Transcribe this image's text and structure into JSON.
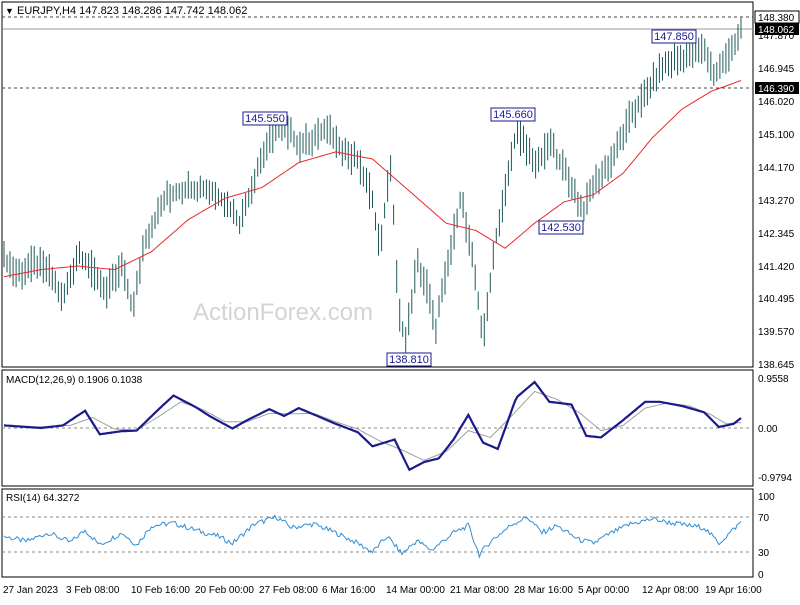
{
  "header": {
    "menu_symbol": "▼",
    "title": "EURJPY,H4  147.823 148.286 147.742 148.062"
  },
  "watermark": "ActionForex.com",
  "colors": {
    "background": "#ffffff",
    "axis": "#000000",
    "bars": "#1e5a5a",
    "ma_line": "#e8282d",
    "macd_line": "#1a1a8c",
    "signal_line": "#a0a0a0",
    "rsi_line": "#2f8fd6",
    "label_border": "#1a1a8c",
    "label_text": "#1a1a8c",
    "grid_dash": "#888888",
    "watermark": "#d4d4d4"
  },
  "price_panel": {
    "y_ticks": [
      "147.870",
      "146.945",
      "146.020",
      "145.100",
      "144.170",
      "143.270",
      "142.345",
      "141.420",
      "140.495",
      "139.570",
      "138.645"
    ],
    "current_price_badge": "148.062",
    "high_line_badge": "148.380",
    "support_line_badge": "146.390",
    "annotations": [
      {
        "text": "145.550"
      },
      {
        "text": "138.810"
      },
      {
        "text": "145.660"
      },
      {
        "text": "142.530"
      },
      {
        "text": "147.850"
      }
    ]
  },
  "macd_panel": {
    "title": "MACD(12,26,9) 0.1906 0.1038",
    "y_ticks": [
      "0.9558",
      "0.00",
      "-0.9794"
    ]
  },
  "rsi_panel": {
    "title": "RSI(14) 64.3272",
    "y_ticks": [
      "100",
      "70",
      "30",
      "0"
    ]
  },
  "x_axis_labels": [
    "27 Jan 2023",
    "3 Feb 08:00",
    "10 Feb 16:00",
    "20 Feb 00:00",
    "27 Feb 08:00",
    "6 Mar 16:00",
    "14 Mar 00:00",
    "21 Mar 08:00",
    "28 Mar 16:00",
    "5 Apr 00:00",
    "12 Apr 08:00",
    "19 Apr 16:00"
  ],
  "chart_data": [
    {
      "type": "line",
      "title": "EURJPY,H4",
      "price_range": [
        138.5,
        148.5
      ],
      "levels": {
        "high": 148.38,
        "support": 146.39,
        "current": 148.062
      },
      "annotations": [
        {
          "t": 0.36,
          "value": 145.55,
          "text": "145.550"
        },
        {
          "t": 0.545,
          "value": 138.81,
          "text": "138.810"
        },
        {
          "t": 0.685,
          "value": 145.66,
          "text": "145.660"
        },
        {
          "t": 0.79,
          "value": 142.53,
          "text": "142.530"
        },
        {
          "t": 0.935,
          "value": 147.85,
          "text": "147.850"
        }
      ],
      "series": [
        {
          "name": "EURJPY",
          "keypoints": [
            [
              0.0,
              141.6
            ],
            [
              0.02,
              141.2
            ],
            [
              0.04,
              141.5
            ],
            [
              0.06,
              141.3
            ],
            [
              0.08,
              140.4
            ],
            [
              0.1,
              141.8
            ],
            [
              0.12,
              141.3
            ],
            [
              0.14,
              140.7
            ],
            [
              0.16,
              141.4
            ],
            [
              0.175,
              140.1
            ],
            [
              0.19,
              142.1
            ],
            [
              0.22,
              143.3
            ],
            [
              0.25,
              143.6
            ],
            [
              0.28,
              143.5
            ],
            [
              0.3,
              143.2
            ],
            [
              0.32,
              142.6
            ],
            [
              0.34,
              143.9
            ],
            [
              0.36,
              145.0
            ],
            [
              0.38,
              145.3
            ],
            [
              0.4,
              144.8
            ],
            [
              0.42,
              145.0
            ],
            [
              0.44,
              145.2
            ],
            [
              0.46,
              144.7
            ],
            [
              0.48,
              144.3
            ],
            [
              0.5,
              143.3
            ],
            [
              0.51,
              141.9
            ],
            [
              0.525,
              144.3
            ],
            [
              0.535,
              140.2
            ],
            [
              0.545,
              139.3
            ],
            [
              0.56,
              141.5
            ],
            [
              0.575,
              140.8
            ],
            [
              0.585,
              139.6
            ],
            [
              0.6,
              141.2
            ],
            [
              0.62,
              143.4
            ],
            [
              0.64,
              141.0
            ],
            [
              0.65,
              139.3
            ],
            [
              0.665,
              141.9
            ],
            [
              0.68,
              143.5
            ],
            [
              0.695,
              145.2
            ],
            [
              0.71,
              144.7
            ],
            [
              0.725,
              144.2
            ],
            [
              0.74,
              144.9
            ],
            [
              0.755,
              144.3
            ],
            [
              0.77,
              143.7
            ],
            [
              0.785,
              142.9
            ],
            [
              0.8,
              143.7
            ],
            [
              0.815,
              144.1
            ],
            [
              0.83,
              144.6
            ],
            [
              0.85,
              145.6
            ],
            [
              0.87,
              146.2
            ],
            [
              0.89,
              146.9
            ],
            [
              0.91,
              147.2
            ],
            [
              0.93,
              147.3
            ],
            [
              0.95,
              147.5
            ],
            [
              0.965,
              146.7
            ],
            [
              0.975,
              147.1
            ],
            [
              0.985,
              147.4
            ],
            [
              1.0,
              148.06
            ]
          ]
        },
        {
          "name": "MA",
          "keypoints": [
            [
              0.0,
              141.1
            ],
            [
              0.05,
              141.3
            ],
            [
              0.1,
              141.4
            ],
            [
              0.15,
              141.3
            ],
            [
              0.2,
              141.8
            ],
            [
              0.25,
              142.7
            ],
            [
              0.3,
              143.3
            ],
            [
              0.35,
              143.6
            ],
            [
              0.4,
              144.3
            ],
            [
              0.45,
              144.6
            ],
            [
              0.5,
              144.4
            ],
            [
              0.55,
              143.5
            ],
            [
              0.6,
              142.6
            ],
            [
              0.64,
              142.4
            ],
            [
              0.68,
              141.9
            ],
            [
              0.72,
              142.6
            ],
            [
              0.76,
              143.2
            ],
            [
              0.8,
              143.4
            ],
            [
              0.84,
              144.0
            ],
            [
              0.88,
              145.0
            ],
            [
              0.92,
              145.8
            ],
            [
              0.96,
              146.3
            ],
            [
              1.0,
              146.6
            ]
          ]
        }
      ]
    },
    {
      "type": "line",
      "title": "MACD(12,26,9)",
      "y_range": [
        -0.9794,
        0.9558
      ],
      "series": [
        {
          "name": "MACD",
          "keypoints": [
            [
              0.0,
              0.05
            ],
            [
              0.05,
              0.0
            ],
            [
              0.08,
              0.05
            ],
            [
              0.11,
              0.33
            ],
            [
              0.13,
              -0.12
            ],
            [
              0.16,
              -0.06
            ],
            [
              0.18,
              -0.05
            ],
            [
              0.21,
              0.36
            ],
            [
              0.23,
              0.62
            ],
            [
              0.26,
              0.4
            ],
            [
              0.28,
              0.22
            ],
            [
              0.31,
              -0.01
            ],
            [
              0.33,
              0.15
            ],
            [
              0.36,
              0.36
            ],
            [
              0.38,
              0.23
            ],
            [
              0.4,
              0.38
            ],
            [
              0.42,
              0.26
            ],
            [
              0.45,
              0.08
            ],
            [
              0.48,
              -0.08
            ],
            [
              0.5,
              -0.35
            ],
            [
              0.53,
              -0.22
            ],
            [
              0.55,
              -0.8
            ],
            [
              0.57,
              -0.65
            ],
            [
              0.59,
              -0.58
            ],
            [
              0.61,
              -0.22
            ],
            [
              0.63,
              0.25
            ],
            [
              0.65,
              -0.28
            ],
            [
              0.67,
              -0.4
            ],
            [
              0.695,
              0.58
            ],
            [
              0.72,
              0.88
            ],
            [
              0.74,
              0.5
            ],
            [
              0.77,
              0.45
            ],
            [
              0.79,
              -0.15
            ],
            [
              0.81,
              -0.18
            ],
            [
              0.84,
              0.15
            ],
            [
              0.87,
              0.5
            ],
            [
              0.89,
              0.5
            ],
            [
              0.92,
              0.42
            ],
            [
              0.95,
              0.3
            ],
            [
              0.97,
              0.02
            ],
            [
              0.99,
              0.08
            ],
            [
              1.0,
              0.1906
            ]
          ]
        },
        {
          "name": "Signal",
          "keypoints": [
            [
              0.0,
              0.05
            ],
            [
              0.05,
              0.02
            ],
            [
              0.09,
              0.05
            ],
            [
              0.12,
              0.2
            ],
            [
              0.15,
              -0.02
            ],
            [
              0.18,
              -0.04
            ],
            [
              0.21,
              0.22
            ],
            [
              0.24,
              0.5
            ],
            [
              0.27,
              0.35
            ],
            [
              0.3,
              0.12
            ],
            [
              0.33,
              0.12
            ],
            [
              0.36,
              0.28
            ],
            [
              0.39,
              0.27
            ],
            [
              0.42,
              0.28
            ],
            [
              0.45,
              0.12
            ],
            [
              0.48,
              -0.02
            ],
            [
              0.51,
              -0.25
            ],
            [
              0.54,
              -0.42
            ],
            [
              0.57,
              -0.62
            ],
            [
              0.6,
              -0.45
            ],
            [
              0.63,
              -0.05
            ],
            [
              0.66,
              -0.18
            ],
            [
              0.69,
              0.25
            ],
            [
              0.72,
              0.7
            ],
            [
              0.75,
              0.55
            ],
            [
              0.78,
              0.3
            ],
            [
              0.81,
              -0.05
            ],
            [
              0.84,
              0.05
            ],
            [
              0.87,
              0.38
            ],
            [
              0.9,
              0.48
            ],
            [
              0.93,
              0.42
            ],
            [
              0.96,
              0.25
            ],
            [
              0.98,
              0.08
            ],
            [
              1.0,
              0.1038
            ]
          ]
        }
      ]
    },
    {
      "type": "line",
      "title": "RSI(14)",
      "y_range": [
        0,
        100
      ],
      "levels": [
        70,
        30
      ],
      "series": [
        {
          "name": "RSI",
          "keypoints": [
            [
              0.0,
              48
            ],
            [
              0.03,
              42
            ],
            [
              0.06,
              52
            ],
            [
              0.09,
              41
            ],
            [
              0.11,
              55
            ],
            [
              0.13,
              38
            ],
            [
              0.16,
              52
            ],
            [
              0.18,
              38
            ],
            [
              0.2,
              60
            ],
            [
              0.23,
              63
            ],
            [
              0.26,
              55
            ],
            [
              0.29,
              48
            ],
            [
              0.31,
              40
            ],
            [
              0.34,
              62
            ],
            [
              0.37,
              70
            ],
            [
              0.39,
              58
            ],
            [
              0.42,
              62
            ],
            [
              0.45,
              52
            ],
            [
              0.48,
              40
            ],
            [
              0.5,
              30
            ],
            [
              0.52,
              48
            ],
            [
              0.54,
              28
            ],
            [
              0.56,
              43
            ],
            [
              0.58,
              32
            ],
            [
              0.61,
              52
            ],
            [
              0.63,
              60
            ],
            [
              0.645,
              27
            ],
            [
              0.66,
              42
            ],
            [
              0.69,
              62
            ],
            [
              0.71,
              70
            ],
            [
              0.73,
              52
            ],
            [
              0.75,
              60
            ],
            [
              0.78,
              44
            ],
            [
              0.8,
              40
            ],
            [
              0.82,
              50
            ],
            [
              0.85,
              62
            ],
            [
              0.88,
              68
            ],
            [
              0.9,
              64
            ],
            [
              0.93,
              60
            ],
            [
              0.95,
              58
            ],
            [
              0.97,
              40
            ],
            [
              0.985,
              52
            ],
            [
              1.0,
              64.3
            ]
          ]
        }
      ]
    }
  ]
}
